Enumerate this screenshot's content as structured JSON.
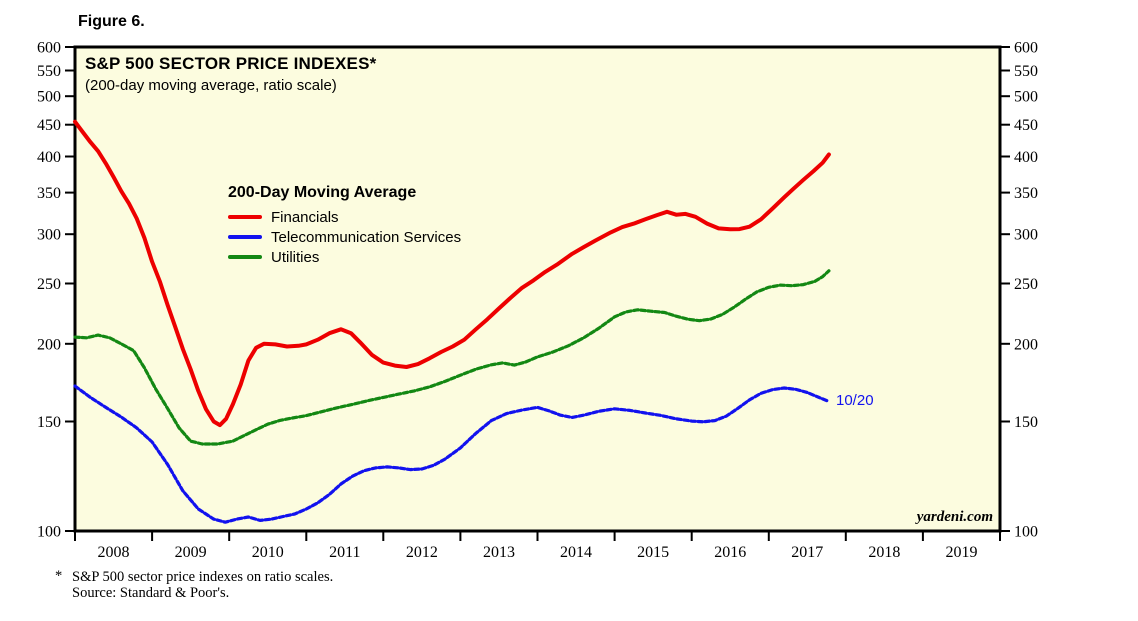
{
  "figure_label": "Figure 6.",
  "footnote": {
    "marker": "*",
    "line1": "S&P 500 sector price indexes on ratio scales.",
    "line2": "Source: Standard & Poor's."
  },
  "chart_data": {
    "type": "line",
    "title": "S&P 500 SECTOR PRICE INDEXES*",
    "subtitle": "(200-day moving average, ratio scale)",
    "legend_title": "200-Day Moving Average",
    "watermark": "yardeni.com",
    "end_label": "10/20",
    "plot_bg": "#FCFCDF",
    "axis_color": "#000000",
    "y_axis": {
      "scale": "log",
      "range": [
        100,
        600
      ],
      "ticks": [
        600,
        550,
        500,
        450,
        400,
        350,
        300,
        250,
        200,
        150,
        100
      ],
      "sides": [
        "left",
        "right"
      ]
    },
    "x_axis": {
      "range": [
        2008,
        2020
      ],
      "tick_years": [
        2008,
        2009,
        2010,
        2011,
        2012,
        2013,
        2014,
        2015,
        2016,
        2017,
        2018,
        2019,
        2020
      ],
      "year_labels": [
        "2008",
        "2009",
        "2010",
        "2011",
        "2012",
        "2013",
        "2014",
        "2015",
        "2016",
        "2017",
        "2018",
        "2019"
      ]
    },
    "series": [
      {
        "name": "Financials",
        "color": "#ed0000",
        "style": "solid",
        "points": [
          [
            2008.0,
            455
          ],
          [
            2008.1,
            438
          ],
          [
            2008.2,
            422
          ],
          [
            2008.3,
            408
          ],
          [
            2008.4,
            390
          ],
          [
            2008.5,
            371
          ],
          [
            2008.6,
            352
          ],
          [
            2008.7,
            336
          ],
          [
            2008.8,
            318
          ],
          [
            2008.9,
            296
          ],
          [
            2009.0,
            271
          ],
          [
            2009.1,
            252
          ],
          [
            2009.2,
            231
          ],
          [
            2009.3,
            213
          ],
          [
            2009.4,
            196
          ],
          [
            2009.5,
            182
          ],
          [
            2009.6,
            168
          ],
          [
            2009.7,
            157
          ],
          [
            2009.8,
            150
          ],
          [
            2009.88,
            148
          ],
          [
            2009.96,
            151.5
          ],
          [
            2010.05,
            160
          ],
          [
            2010.15,
            172
          ],
          [
            2010.25,
            188
          ],
          [
            2010.35,
            197
          ],
          [
            2010.45,
            200
          ],
          [
            2010.6,
            199.5
          ],
          [
            2010.75,
            198
          ],
          [
            2010.9,
            198.5
          ],
          [
            2011.0,
            199.5
          ],
          [
            2011.15,
            203
          ],
          [
            2011.3,
            208
          ],
          [
            2011.45,
            211
          ],
          [
            2011.58,
            208
          ],
          [
            2011.7,
            201
          ],
          [
            2011.85,
            192
          ],
          [
            2012.0,
            186.5
          ],
          [
            2012.15,
            184.5
          ],
          [
            2012.3,
            183.5
          ],
          [
            2012.45,
            185.5
          ],
          [
            2012.6,
            189.5
          ],
          [
            2012.75,
            194
          ],
          [
            2012.9,
            198
          ],
          [
            2013.05,
            203
          ],
          [
            2013.2,
            211
          ],
          [
            2013.35,
            219
          ],
          [
            2013.5,
            228
          ],
          [
            2013.65,
            237
          ],
          [
            2013.8,
            246
          ],
          [
            2013.95,
            253
          ],
          [
            2014.1,
            261
          ],
          [
            2014.25,
            268
          ],
          [
            2014.45,
            279
          ],
          [
            2014.6,
            286
          ],
          [
            2014.75,
            293
          ],
          [
            2014.95,
            302
          ],
          [
            2015.1,
            308
          ],
          [
            2015.25,
            312
          ],
          [
            2015.4,
            317
          ],
          [
            2015.55,
            322
          ],
          [
            2015.68,
            326
          ],
          [
            2015.8,
            322.5
          ],
          [
            2015.92,
            323.5
          ],
          [
            2016.05,
            320
          ],
          [
            2016.2,
            312
          ],
          [
            2016.35,
            306.5
          ],
          [
            2016.5,
            305.5
          ],
          [
            2016.62,
            305.8
          ],
          [
            2016.75,
            308.5
          ],
          [
            2016.9,
            317
          ],
          [
            2017.05,
            330
          ],
          [
            2017.2,
            344
          ],
          [
            2017.32,
            355
          ],
          [
            2017.45,
            367
          ],
          [
            2017.58,
            379
          ],
          [
            2017.7,
            391
          ],
          [
            2017.78,
            403
          ]
        ]
      },
      {
        "name": "Telecommunication Services",
        "color": "#1212ee",
        "style": "dashed",
        "points": [
          [
            2008.0,
            171
          ],
          [
            2008.2,
            164
          ],
          [
            2008.4,
            158
          ],
          [
            2008.6,
            152.5
          ],
          [
            2008.8,
            146.5
          ],
          [
            2009.0,
            139
          ],
          [
            2009.2,
            128
          ],
          [
            2009.4,
            116
          ],
          [
            2009.6,
            108.5
          ],
          [
            2009.8,
            104.5
          ],
          [
            2009.95,
            103.3
          ],
          [
            2010.1,
            104.5
          ],
          [
            2010.25,
            105.3
          ],
          [
            2010.4,
            104
          ],
          [
            2010.55,
            104.5
          ],
          [
            2010.7,
            105.5
          ],
          [
            2010.85,
            106.5
          ],
          [
            2011.0,
            108.5
          ],
          [
            2011.15,
            111
          ],
          [
            2011.3,
            114.5
          ],
          [
            2011.45,
            119
          ],
          [
            2011.6,
            122.5
          ],
          [
            2011.75,
            125
          ],
          [
            2011.9,
            126.3
          ],
          [
            2012.05,
            126.8
          ],
          [
            2012.2,
            126.3
          ],
          [
            2012.35,
            125.5
          ],
          [
            2012.5,
            125.8
          ],
          [
            2012.65,
            127.5
          ],
          [
            2012.8,
            130.5
          ],
          [
            2013.0,
            136
          ],
          [
            2013.2,
            143.5
          ],
          [
            2013.4,
            150.5
          ],
          [
            2013.6,
            154.5
          ],
          [
            2013.8,
            156.5
          ],
          [
            2014.0,
            158
          ],
          [
            2014.15,
            156
          ],
          [
            2014.3,
            153.5
          ],
          [
            2014.45,
            152.3
          ],
          [
            2014.6,
            153.5
          ],
          [
            2014.8,
            155.8
          ],
          [
            2015.0,
            157.2
          ],
          [
            2015.2,
            156.3
          ],
          [
            2015.4,
            154.8
          ],
          [
            2015.6,
            153.4
          ],
          [
            2015.8,
            151.5
          ],
          [
            2016.0,
            150.2
          ],
          [
            2016.15,
            149.8
          ],
          [
            2016.3,
            150.5
          ],
          [
            2016.45,
            153
          ],
          [
            2016.6,
            157.5
          ],
          [
            2016.75,
            162.5
          ],
          [
            2016.9,
            166.5
          ],
          [
            2017.05,
            168.8
          ],
          [
            2017.2,
            169.8
          ],
          [
            2017.35,
            169
          ],
          [
            2017.5,
            167
          ],
          [
            2017.65,
            164
          ],
          [
            2017.78,
            161.5
          ]
        ]
      },
      {
        "name": "Utilities",
        "color": "#138813",
        "style": "dashed",
        "points": [
          [
            2008.0,
            205
          ],
          [
            2008.15,
            204.5
          ],
          [
            2008.3,
            206.5
          ],
          [
            2008.45,
            204.5
          ],
          [
            2008.6,
            200
          ],
          [
            2008.76,
            195
          ],
          [
            2008.9,
            183
          ],
          [
            2009.05,
            169
          ],
          [
            2009.2,
            157.5
          ],
          [
            2009.35,
            146.5
          ],
          [
            2009.5,
            139.5
          ],
          [
            2009.65,
            138
          ],
          [
            2009.85,
            138
          ],
          [
            2010.05,
            139.5
          ],
          [
            2010.2,
            142.5
          ],
          [
            2010.35,
            145.5
          ],
          [
            2010.5,
            148.5
          ],
          [
            2010.65,
            150.5
          ],
          [
            2010.8,
            151.8
          ],
          [
            2011.0,
            153.3
          ],
          [
            2011.2,
            155.5
          ],
          [
            2011.4,
            157.8
          ],
          [
            2011.6,
            159.8
          ],
          [
            2011.8,
            162
          ],
          [
            2012.0,
            164
          ],
          [
            2012.2,
            166
          ],
          [
            2012.4,
            168
          ],
          [
            2012.6,
            170.5
          ],
          [
            2012.8,
            174
          ],
          [
            2013.0,
            178
          ],
          [
            2013.2,
            182
          ],
          [
            2013.4,
            185
          ],
          [
            2013.55,
            186.3
          ],
          [
            2013.7,
            184.8
          ],
          [
            2013.85,
            187
          ],
          [
            2014.0,
            190.5
          ],
          [
            2014.2,
            194
          ],
          [
            2014.4,
            198.5
          ],
          [
            2014.6,
            204.5
          ],
          [
            2014.8,
            212
          ],
          [
            2015.0,
            221
          ],
          [
            2015.15,
            225
          ],
          [
            2015.3,
            226.8
          ],
          [
            2015.47,
            225.6
          ],
          [
            2015.65,
            224.5
          ],
          [
            2015.8,
            221.5
          ],
          [
            2015.95,
            219
          ],
          [
            2016.1,
            217.8
          ],
          [
            2016.25,
            219.2
          ],
          [
            2016.4,
            223
          ],
          [
            2016.55,
            229
          ],
          [
            2016.7,
            236
          ],
          [
            2016.85,
            242.5
          ],
          [
            2017.0,
            246.5
          ],
          [
            2017.15,
            248.5
          ],
          [
            2017.3,
            248
          ],
          [
            2017.45,
            249
          ],
          [
            2017.6,
            252
          ],
          [
            2017.7,
            256.5
          ],
          [
            2017.78,
            262
          ]
        ]
      }
    ]
  }
}
